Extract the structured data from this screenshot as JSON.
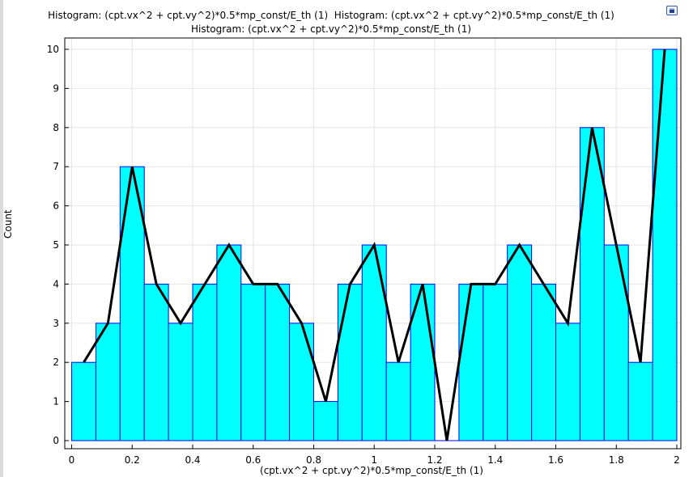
{
  "window": {
    "title_line1": "Histogram: (cpt.vx^2 + cpt.vy^2)*0.5*mp_const/E_th (1)  Histogram: (cpt.vx^2 + cpt.vy^2)*0.5*mp_const/E_th (1)",
    "title_line2": "Histogram: (cpt.vx^2 + cpt.vy^2)*0.5*mp_const/E_th (1)",
    "corner_icon": "plot-window-icon"
  },
  "chart_data": {
    "type": "bar",
    "title": "Histogram: (cpt.vx^2 + cpt.vy^2)*0.5*mp_const/E_th (1)",
    "xlabel": "(cpt.vx^2 + cpt.vy^2)*0.5*mp_const/E_th (1)",
    "ylabel": "Count",
    "xlim": [
      0,
      2
    ],
    "ylim": [
      0,
      10
    ],
    "xticks": [
      "0",
      "0.2",
      "0.4",
      "0.6",
      "0.8",
      "1",
      "1.2",
      "1.4",
      "1.6",
      "1.8",
      "2"
    ],
    "yticks": [
      "0",
      "1",
      "2",
      "3",
      "4",
      "5",
      "6",
      "7",
      "8",
      "9",
      "10"
    ],
    "bin_edges": [
      0.0,
      0.08,
      0.16,
      0.24,
      0.32,
      0.4,
      0.48,
      0.56,
      0.64,
      0.72,
      0.8,
      0.88,
      0.96,
      1.04,
      1.12,
      1.2,
      1.28,
      1.36,
      1.44,
      1.52,
      1.6,
      1.68,
      1.76,
      1.84,
      1.92,
      2.0
    ],
    "counts": [
      2,
      3,
      7,
      4,
      3,
      4,
      5,
      4,
      4,
      3,
      1,
      4,
      5,
      2,
      4,
      0,
      4,
      4,
      5,
      4,
      3,
      8,
      5,
      2,
      10
    ],
    "bar_color": "#00ffff",
    "bar_edge_color": "#0000ff",
    "line_color": "#000000",
    "grid": true
  }
}
